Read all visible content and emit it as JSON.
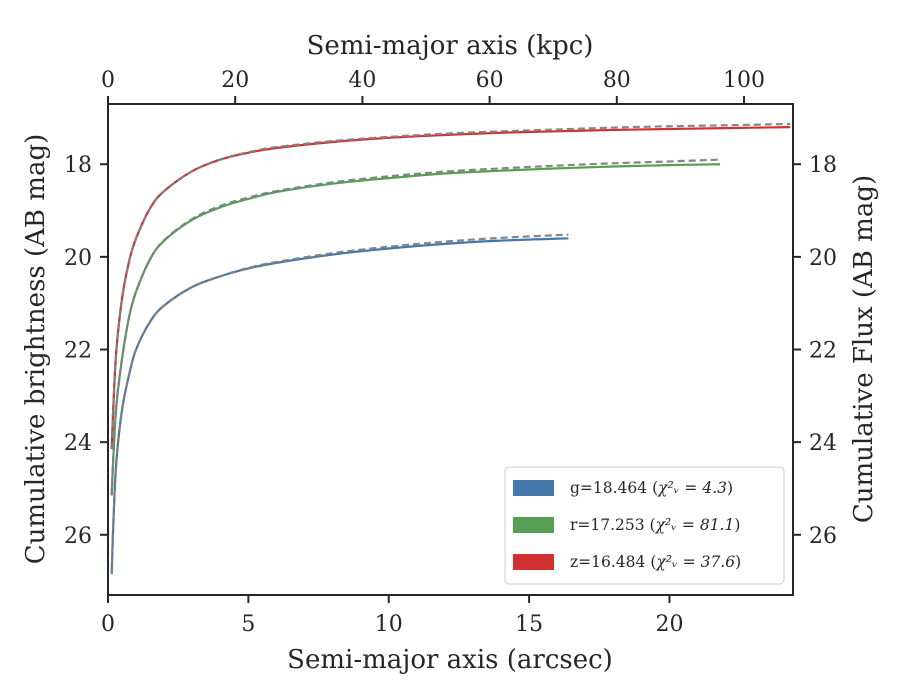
{
  "chart_data": {
    "type": "line",
    "xlabel_bottom": "Semi-major axis (arcsec)",
    "xlabel_top": "Semi-major axis (kpc)",
    "ylabel_left": "Cumulative brightness (AB mag)",
    "ylabel_right": "Cumulative Flux (AB mag)",
    "xlim": [
      0,
      24.4
    ],
    "ylim": [
      27.3,
      16.7
    ],
    "y_inverted": true,
    "x_top_lim_kpc": [
      0,
      107.7
    ],
    "x_ticks_bottom": [
      0,
      5,
      10,
      15,
      20
    ],
    "x_ticks_top": [
      0,
      20,
      40,
      60,
      80,
      100
    ],
    "y_ticks": [
      18,
      20,
      22,
      24,
      26
    ],
    "grid": false,
    "legend_position": "lower-right",
    "series": [
      {
        "name": "g=18.464 ($\\chi^2_\\nu = 4.3$)",
        "label_main": "g=18.464 (",
        "label_chi": "χ²ᵥ = 4.3",
        "label_end": ")",
        "color": "#4477aa",
        "x": [
          0.13,
          0.2,
          0.3,
          0.5,
          0.75,
          1.0,
          1.5,
          2.0,
          3.0,
          4.0,
          5.0,
          6.0,
          8.0,
          10.0,
          12.0,
          14.0,
          16.4
        ],
        "y": [
          26.85,
          25.6,
          24.4,
          23.3,
          22.55,
          22.0,
          21.4,
          21.05,
          20.65,
          20.42,
          20.25,
          20.13,
          19.95,
          19.82,
          19.72,
          19.65,
          19.6
        ],
        "model_y": [
          26.85,
          25.6,
          24.4,
          23.3,
          22.55,
          22.0,
          21.4,
          21.05,
          20.65,
          20.42,
          20.24,
          20.11,
          19.92,
          19.78,
          19.67,
          19.59,
          19.52
        ]
      },
      {
        "name": "r=17.253 ($\\chi^2_\\nu = 81.1$)",
        "label_main": "r=17.253 (",
        "label_chi": "χ²ᵥ = 81.1",
        "label_end": ")",
        "color": "#55a055",
        "x": [
          0.13,
          0.2,
          0.3,
          0.5,
          0.75,
          1.0,
          1.5,
          2.0,
          3.0,
          4.0,
          5.0,
          6.0,
          8.0,
          10.0,
          12.0,
          14.0,
          16.0,
          18.0,
          20.0,
          21.8
        ],
        "y": [
          25.15,
          24.2,
          23.2,
          22.2,
          21.3,
          20.75,
          20.05,
          19.65,
          19.2,
          18.93,
          18.75,
          18.6,
          18.42,
          18.3,
          18.2,
          18.14,
          18.09,
          18.05,
          18.02,
          18.0
        ],
        "model_y": [
          25.15,
          24.2,
          23.2,
          22.2,
          21.3,
          20.75,
          20.05,
          19.64,
          19.18,
          18.9,
          18.72,
          18.58,
          18.39,
          18.26,
          18.16,
          18.09,
          18.03,
          17.98,
          17.94,
          17.9
        ]
      },
      {
        "name": "z=16.484 ($\\chi^2_\\nu = 37.6$)",
        "label_main": "z=16.484 (",
        "label_chi": "χ²ᵥ = 37.6",
        "label_end": ")",
        "color": "#d03030",
        "x": [
          0.13,
          0.2,
          0.3,
          0.5,
          0.75,
          1.0,
          1.5,
          2.0,
          3.0,
          4.0,
          5.0,
          6.0,
          8.0,
          10.0,
          12.0,
          14.0,
          16.0,
          18.0,
          20.0,
          22.0,
          24.3
        ],
        "y": [
          24.15,
          23.1,
          22.0,
          20.9,
          20.1,
          19.6,
          18.95,
          18.58,
          18.15,
          17.9,
          17.75,
          17.65,
          17.52,
          17.43,
          17.37,
          17.32,
          17.29,
          17.26,
          17.24,
          17.22,
          17.2
        ],
        "model_y": [
          24.15,
          23.1,
          22.0,
          20.9,
          20.1,
          19.6,
          18.95,
          18.58,
          18.15,
          17.9,
          17.74,
          17.63,
          17.5,
          17.41,
          17.34,
          17.29,
          17.25,
          17.21,
          17.18,
          17.16,
          17.13
        ]
      }
    ]
  }
}
